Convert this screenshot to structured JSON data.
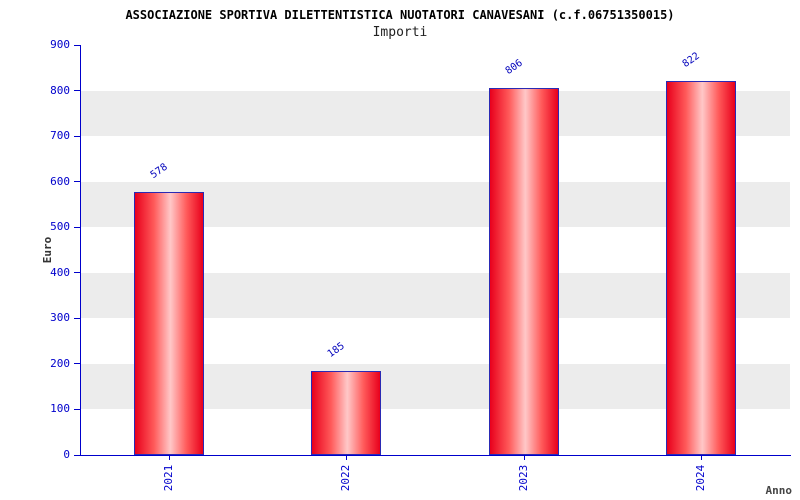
{
  "header": {
    "title": "ASSOCIAZIONE SPORTIVA DILETTENTISTICA NUOTATORI CANAVESANI (c.f.06751350015)",
    "subtitle": "Importi"
  },
  "chart_data": {
    "type": "bar",
    "title": "ASSOCIAZIONE SPORTIVA DILETTENTISTICA NUOTATORI CANAVESANI (c.f.06751350015)",
    "subtitle": "Importi",
    "categories": [
      "2021",
      "2022",
      "2023",
      "2024"
    ],
    "values": [
      578,
      185,
      806,
      822
    ],
    "xlabel": "Anno",
    "ylabel": "Euro",
    "ylim": [
      0,
      900
    ],
    "ytick_step": 100,
    "grid": "banded-horizontal",
    "legend": "none",
    "colors": {
      "axis": "#0000cc",
      "tick_label": "#0000cc",
      "value_label": "#0000bb",
      "bar_edge": "#e8001c",
      "bar_mid": "#ffc8c8",
      "bar_border": "#2a2ab4",
      "stripe": "#ececec",
      "title": "#000000",
      "subtitle": "#222222"
    }
  }
}
